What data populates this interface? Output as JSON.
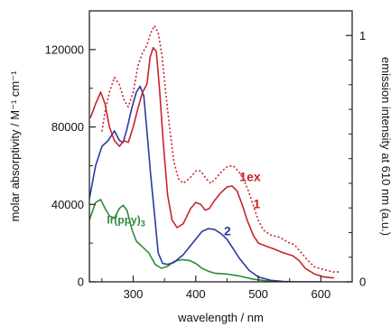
{
  "chart_data": {
    "type": "line",
    "xlabel": "wavelength / nm",
    "ylabel": "molar absorptivity / M⁻¹ cm⁻¹",
    "y2label": "emission intensity at 610 nm (a.u.)",
    "xlim": [
      230,
      650
    ],
    "ylim": [
      0,
      140000
    ],
    "y2lim": [
      0,
      1.1
    ],
    "xticks": [
      {
        "v": 300,
        "t": "300"
      },
      {
        "v": 400,
        "t": "400"
      },
      {
        "v": 500,
        "t": "500"
      },
      {
        "v": 600,
        "t": "600"
      }
    ],
    "xticks_minor": [
      250,
      350,
      450,
      550,
      650
    ],
    "yticks": [
      {
        "v": 0,
        "t": "0"
      },
      {
        "v": 40000,
        "t": "40000"
      },
      {
        "v": 80000,
        "t": "80000"
      },
      {
        "v": 120000,
        "t": "120000"
      }
    ],
    "yticks_minor": [
      20000,
      60000,
      100000,
      140000
    ],
    "y2ticks": [
      {
        "v": 0,
        "t": "0"
      },
      {
        "v": 1,
        "t": "1"
      }
    ],
    "y2ticks_minor": [
      0.1,
      0.2,
      0.3,
      0.4,
      0.5,
      0.6,
      0.7,
      0.8,
      0.9
    ],
    "grid": false,
    "series": [
      {
        "name": "Ir(ppy)3",
        "label_parts": [
          "Ir(ppy)",
          "3"
        ],
        "color": "#2e8b3a",
        "style": "solid",
        "axis": "left",
        "points": [
          [
            230,
            32000
          ],
          [
            240,
            41000
          ],
          [
            248,
            42500
          ],
          [
            255,
            38000
          ],
          [
            262,
            34000
          ],
          [
            270,
            33000
          ],
          [
            278,
            38000
          ],
          [
            284,
            39500
          ],
          [
            290,
            37000
          ],
          [
            298,
            27000
          ],
          [
            305,
            21000
          ],
          [
            315,
            18000
          ],
          [
            325,
            15000
          ],
          [
            335,
            9000
          ],
          [
            345,
            7000
          ],
          [
            355,
            8000
          ],
          [
            365,
            10500
          ],
          [
            378,
            11500
          ],
          [
            390,
            11000
          ],
          [
            400,
            9500
          ],
          [
            410,
            7000
          ],
          [
            420,
            5500
          ],
          [
            430,
            4500
          ],
          [
            450,
            4000
          ],
          [
            470,
            3000
          ],
          [
            490,
            1500
          ],
          [
            510,
            600
          ],
          [
            530,
            100
          ],
          [
            550,
            0
          ]
        ]
      },
      {
        "name": "2",
        "color": "#2a3aa0",
        "style": "solid",
        "axis": "left",
        "points": [
          [
            230,
            43000
          ],
          [
            240,
            60000
          ],
          [
            250,
            70000
          ],
          [
            260,
            73000
          ],
          [
            270,
            78000
          ],
          [
            278,
            73000
          ],
          [
            284,
            72000
          ],
          [
            290,
            79000
          ],
          [
            298,
            90000
          ],
          [
            305,
            98000
          ],
          [
            311,
            101000
          ],
          [
            317,
            96000
          ],
          [
            322,
            78000
          ],
          [
            328,
            55000
          ],
          [
            334,
            35000
          ],
          [
            340,
            15000
          ],
          [
            347,
            9500
          ],
          [
            355,
            9000
          ],
          [
            365,
            10000
          ],
          [
            380,
            14000
          ],
          [
            395,
            20000
          ],
          [
            410,
            26000
          ],
          [
            420,
            27500
          ],
          [
            430,
            27000
          ],
          [
            440,
            25000
          ],
          [
            450,
            22000
          ],
          [
            460,
            17000
          ],
          [
            470,
            12000
          ],
          [
            485,
            6000
          ],
          [
            500,
            2500
          ],
          [
            520,
            800
          ],
          [
            540,
            200
          ],
          [
            560,
            0
          ],
          [
            600,
            0
          ]
        ]
      },
      {
        "name": "1",
        "color": "#c8242b",
        "style": "solid",
        "axis": "left",
        "points": [
          [
            232,
            85000
          ],
          [
            240,
            92000
          ],
          [
            248,
            98000
          ],
          [
            255,
            92000
          ],
          [
            262,
            80000
          ],
          [
            270,
            73000
          ],
          [
            278,
            70000
          ],
          [
            285,
            73000
          ],
          [
            292,
            72000
          ],
          [
            300,
            80000
          ],
          [
            308,
            90000
          ],
          [
            315,
            98000
          ],
          [
            322,
            102000
          ],
          [
            327,
            116000
          ],
          [
            332,
            121000
          ],
          [
            337,
            119000
          ],
          [
            342,
            100000
          ],
          [
            348,
            72000
          ],
          [
            355,
            45000
          ],
          [
            362,
            32000
          ],
          [
            370,
            28000
          ],
          [
            380,
            30000
          ],
          [
            392,
            38000
          ],
          [
            400,
            41000
          ],
          [
            408,
            40000
          ],
          [
            415,
            37000
          ],
          [
            422,
            38000
          ],
          [
            430,
            42000
          ],
          [
            440,
            46000
          ],
          [
            450,
            49000
          ],
          [
            458,
            49500
          ],
          [
            466,
            47000
          ],
          [
            474,
            40000
          ],
          [
            482,
            32000
          ],
          [
            492,
            24000
          ],
          [
            500,
            20000
          ],
          [
            512,
            18500
          ],
          [
            525,
            17000
          ],
          [
            540,
            15000
          ],
          [
            555,
            13500
          ],
          [
            565,
            11000
          ],
          [
            575,
            7000
          ],
          [
            590,
            4000
          ],
          [
            605,
            2500
          ],
          [
            620,
            2000
          ]
        ]
      },
      {
        "name": "1ex",
        "color": "#c8242b",
        "style": "dotted",
        "axis": "right",
        "points": [
          [
            250,
            0.61
          ],
          [
            255,
            0.69
          ],
          [
            262,
            0.77
          ],
          [
            270,
            0.83
          ],
          [
            278,
            0.8
          ],
          [
            285,
            0.74
          ],
          [
            292,
            0.71
          ],
          [
            300,
            0.77
          ],
          [
            308,
            0.88
          ],
          [
            315,
            0.93
          ],
          [
            322,
            0.96
          ],
          [
            328,
            1.01
          ],
          [
            334,
            1.04
          ],
          [
            340,
            1.01
          ],
          [
            346,
            0.92
          ],
          [
            352,
            0.77
          ],
          [
            358,
            0.63
          ],
          [
            365,
            0.49
          ],
          [
            372,
            0.42
          ],
          [
            380,
            0.4
          ],
          [
            390,
            0.42
          ],
          [
            400,
            0.45
          ],
          [
            408,
            0.45
          ],
          [
            416,
            0.42
          ],
          [
            424,
            0.4
          ],
          [
            432,
            0.42
          ],
          [
            442,
            0.45
          ],
          [
            452,
            0.47
          ],
          [
            460,
            0.47
          ],
          [
            468,
            0.45
          ],
          [
            476,
            0.42
          ],
          [
            484,
            0.37
          ],
          [
            492,
            0.31
          ],
          [
            500,
            0.25
          ],
          [
            508,
            0.21
          ],
          [
            520,
            0.19
          ],
          [
            535,
            0.18
          ],
          [
            548,
            0.16
          ],
          [
            558,
            0.15
          ],
          [
            568,
            0.12
          ],
          [
            578,
            0.09
          ],
          [
            590,
            0.06
          ],
          [
            605,
            0.05
          ],
          [
            620,
            0.04
          ],
          [
            630,
            0.04
          ]
        ]
      }
    ],
    "labels": [
      {
        "text": "1ex",
        "series": "1ex",
        "x": 470,
        "y": 52000
      },
      {
        "text": "1",
        "series": "1",
        "x": 492,
        "y": 38000
      },
      {
        "text": "2",
        "series": "2",
        "x": 445,
        "y": 24000
      },
      {
        "text": "Ir(ppy)3",
        "series": "Ir(ppy)3",
        "x": 258,
        "y": 30000
      }
    ]
  }
}
